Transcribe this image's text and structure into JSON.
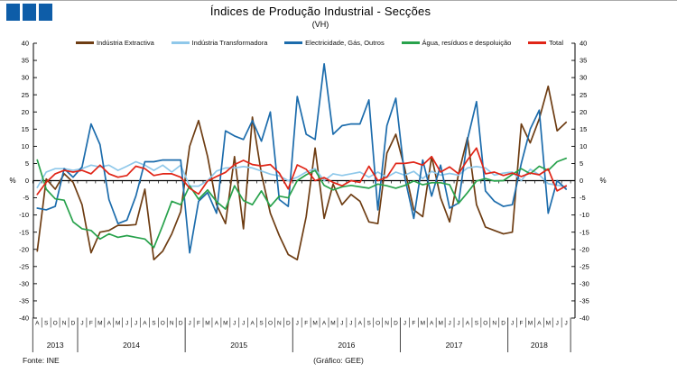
{
  "header": {
    "title": "Índices de Produção Industrial - Secções",
    "subtitle": "(VH)",
    "logo_color": "#0e5da8"
  },
  "footer": {
    "source": "Fonte: INE",
    "credit": "(Gráfico: GEE)"
  },
  "axis": {
    "percent_label_left": "%",
    "percent_label_right": "%"
  },
  "chart_data": {
    "type": "line",
    "title": "Índices de Produção Industrial - Secções",
    "subtitle": "(VH)",
    "ylim": [
      -40,
      40
    ],
    "ytick_step": 5,
    "grid": false,
    "legend_position": "top",
    "x_labels": [
      "A",
      "S",
      "O",
      "N",
      "D",
      "J",
      "F",
      "M",
      "A",
      "M",
      "J",
      "J",
      "A",
      "S",
      "O",
      "N",
      "D",
      "J",
      "F",
      "M",
      "A",
      "M",
      "J",
      "J",
      "A",
      "S",
      "O",
      "N",
      "D",
      "J",
      "F",
      "M",
      "A",
      "M",
      "J",
      "J",
      "A",
      "S",
      "O",
      "N",
      "D",
      "J",
      "F",
      "M",
      "A",
      "M",
      "J",
      "J",
      "A",
      "S",
      "O",
      "N",
      "D",
      "J",
      "F",
      "M",
      "A",
      "M",
      "J",
      "J"
    ],
    "years": [
      {
        "label": "2013",
        "months": 5
      },
      {
        "label": "2014",
        "months": 12
      },
      {
        "label": "2015",
        "months": 12
      },
      {
        "label": "2016",
        "months": 12
      },
      {
        "label": "2017",
        "months": 12
      },
      {
        "label": "2018",
        "months": 7
      }
    ],
    "series": [
      {
        "name": "Indústria Extractiva",
        "color": "#6e3d13",
        "values": [
          -20.5,
          0.5,
          -2.5,
          2,
          -0.5,
          -7,
          -21,
          -15,
          -14.5,
          -13,
          -13,
          -12.8,
          -2.5,
          -23,
          -20.5,
          -15.5,
          -9,
          10,
          17.5,
          7,
          -7,
          -12.5,
          7,
          -14,
          18.5,
          2,
          -9.5,
          -16,
          -21.5,
          -23,
          -10.5,
          9.5,
          -11,
          -1,
          -7,
          -4,
          -6,
          -12,
          -12.5,
          8,
          13.5,
          3.5,
          -8.5,
          -10.5,
          7,
          -5,
          -12,
          2,
          12.5,
          -7,
          -13.5,
          -14.5,
          -15.5,
          -15,
          16.5,
          11,
          18,
          27.5,
          14.5,
          17
        ]
      },
      {
        "name": "Indústria Transformadora",
        "color": "#8fc8ea",
        "values": [
          -2,
          2.5,
          3.5,
          3.5,
          3,
          3.5,
          4.5,
          4,
          4.5,
          3,
          4.2,
          5.5,
          4.5,
          3,
          4.5,
          2.5,
          4.5,
          -1.6,
          -1.6,
          0,
          2.8,
          3.7,
          3.7,
          4.1,
          3.7,
          2.8,
          1.9,
          1.4,
          0,
          1,
          2.5,
          3.5,
          0,
          2,
          1.5,
          2,
          2.5,
          1,
          2.5,
          1,
          2.5,
          1.6,
          2.7,
          0.6,
          2.7,
          1.6,
          2.1,
          1.6,
          3.7,
          4.1,
          3.7,
          1.6,
          2.2,
          2.5,
          0,
          3.3,
          1.7,
          -0.9,
          -1.3,
          -1.8
        ]
      },
      {
        "name": "Electricidade, Gás, Outros",
        "color": "#1c6cac",
        "values": [
          -8,
          -8.5,
          -7.5,
          3.5,
          1,
          4,
          16.5,
          10.5,
          -5.5,
          -12.5,
          -11.5,
          -4.5,
          5.5,
          5.5,
          6,
          6,
          6,
          -21,
          -6,
          -3.5,
          -9.5,
          14.5,
          13,
          12,
          17.5,
          11.5,
          20,
          -5.5,
          -7.5,
          24.5,
          13.5,
          12,
          34,
          13.5,
          16,
          16.5,
          16.5,
          23.5,
          -8.5,
          16,
          24,
          1,
          -11,
          6,
          -4.5,
          4.5,
          -8,
          -6.5,
          12,
          23,
          -3,
          -6,
          -7.5,
          -7,
          5,
          15,
          20.5,
          -9.5,
          0,
          -2.5
        ]
      },
      {
        "name": "Água, resíduos e despoluição",
        "color": "#28a24c",
        "values": [
          6,
          -2.5,
          -5.3,
          -5.7,
          -12,
          -14,
          -14.5,
          -17,
          -15.5,
          -16.5,
          -16,
          -16.5,
          -17,
          -19.5,
          -13,
          -6,
          -7,
          -1.5,
          -5.4,
          -2.7,
          -6.1,
          -8.3,
          -1.5,
          -5.8,
          -7,
          -3,
          -7.5,
          -4.5,
          -5,
          0,
          1.7,
          3,
          -1.4,
          -2.7,
          -1.8,
          -1.4,
          -1.8,
          -2.2,
          -1,
          -1.5,
          -2.2,
          -1.4,
          -0.1,
          -1.2,
          -0.6,
          -0.6,
          -1.2,
          -6.6,
          -3.5,
          -0.1,
          0.6,
          -0.1,
          0,
          1.8,
          3.5,
          2,
          4.2,
          3,
          5.5,
          6.5
        ]
      },
      {
        "name": "Total",
        "color": "#e02517",
        "values": [
          -4,
          -0.5,
          2,
          3,
          2.5,
          3,
          2,
          4.5,
          2,
          1,
          1.5,
          4.2,
          3.5,
          1.5,
          2,
          2,
          1,
          -2.2,
          -3.9,
          -0.1,
          1.2,
          2.4,
          4.7,
          5.9,
          4.7,
          4.3,
          4.7,
          2.2,
          -2.4,
          4.6,
          3.3,
          0,
          0.9,
          -0.5,
          -1.5,
          0,
          -0.5,
          4.2,
          0,
          1,
          5,
          5,
          5.4,
          4.5,
          7,
          2.5,
          4,
          2,
          6,
          9.5,
          2,
          2.5,
          1.5,
          2.2,
          1.2,
          2.2,
          1.7,
          3.4,
          -3,
          -1.5
        ]
      }
    ]
  }
}
